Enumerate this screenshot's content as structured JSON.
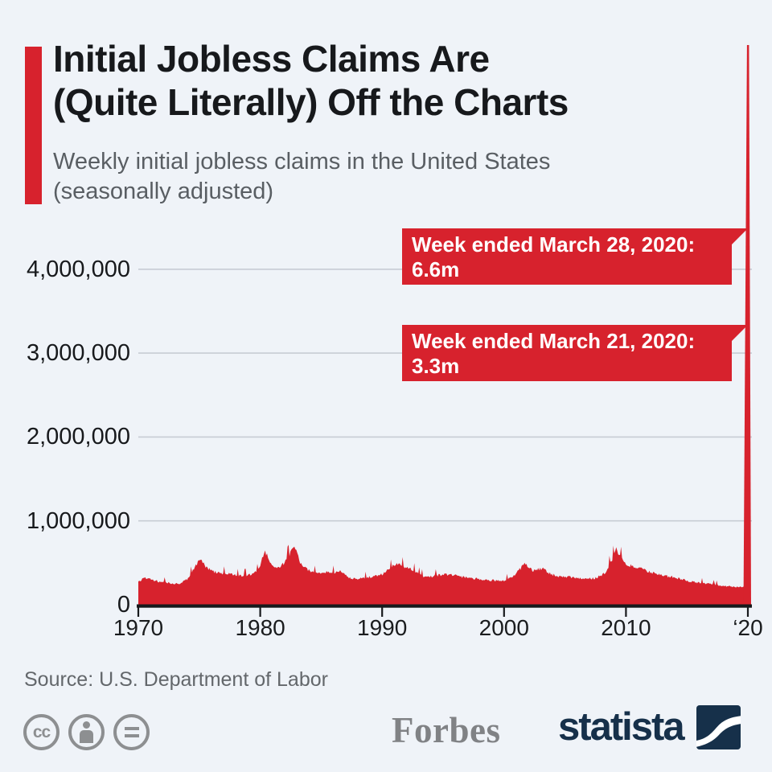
{
  "page": {
    "background_color": "#eff3f8",
    "accent_red": "#d7222d",
    "brand_navy": "#16304a"
  },
  "header": {
    "title_lines": [
      "Initial Jobless Claims Are",
      "(Quite Literally) Off the Charts"
    ],
    "subtitle_lines": [
      "Weekly initial jobless claims in the United States",
      "(seasonally adjusted)"
    ]
  },
  "chart_data": {
    "type": "area",
    "title": "Weekly initial jobless claims in the United States (seasonally adjusted)",
    "series_color": "#d7222d",
    "grid": "horizontal-only",
    "x_range": [
      1970,
      2020
    ],
    "ylim": [
      0,
      4350000
    ],
    "y_unit": "claims per week",
    "y_ticks": [
      {
        "label": "0",
        "millions": 0
      },
      {
        "label": "1,000,000",
        "millions": 1
      },
      {
        "label": "2,000,000",
        "millions": 2
      },
      {
        "label": "3,000,000",
        "millions": 3
      },
      {
        "label": "4,000,000",
        "millions": 4
      }
    ],
    "x_ticks": [
      {
        "label": "1970",
        "year": 1970
      },
      {
        "label": "1980",
        "year": 1980
      },
      {
        "label": "1990",
        "year": 1990
      },
      {
        "label": "2000",
        "year": 2000
      },
      {
        "label": "2010",
        "year": 2010
      },
      {
        "label": "‘20",
        "year": 2020
      }
    ],
    "series": [
      {
        "name": "Initial jobless claims (thousands, approximate weekly values)",
        "points": [
          [
            1970,
            270
          ],
          [
            1970.5,
            330
          ],
          [
            1971,
            300
          ],
          [
            1971.8,
            272
          ],
          [
            1972.5,
            260
          ],
          [
            1973.3,
            245
          ],
          [
            1974,
            300
          ],
          [
            1974.8,
            480
          ],
          [
            1975.1,
            560
          ],
          [
            1975.6,
            440
          ],
          [
            1976.2,
            390
          ],
          [
            1977,
            375
          ],
          [
            1977.8,
            355
          ],
          [
            1978.5,
            342
          ],
          [
            1979.2,
            360
          ],
          [
            1979.8,
            400
          ],
          [
            1980.4,
            640
          ],
          [
            1980.9,
            470
          ],
          [
            1981.4,
            425
          ],
          [
            1981.9,
            490
          ],
          [
            1982.4,
            600
          ],
          [
            1982.8,
            690
          ],
          [
            1983.3,
            500
          ],
          [
            1983.9,
            420
          ],
          [
            1984.6,
            372
          ],
          [
            1985.3,
            392
          ],
          [
            1986,
            382
          ],
          [
            1986.6,
            398
          ],
          [
            1987.2,
            322
          ],
          [
            1988,
            302
          ],
          [
            1989,
            332
          ],
          [
            1990,
            362
          ],
          [
            1990.8,
            448
          ],
          [
            1991.2,
            498
          ],
          [
            1991.9,
            448
          ],
          [
            1992.5,
            418
          ],
          [
            1993.2,
            348
          ],
          [
            1994,
            332
          ],
          [
            1995,
            362
          ],
          [
            1996,
            350
          ],
          [
            1997,
            318
          ],
          [
            1998,
            305
          ],
          [
            1999,
            292
          ],
          [
            2000,
            283
          ],
          [
            2000.8,
            340
          ],
          [
            2001.7,
            490
          ],
          [
            2002.3,
            408
          ],
          [
            2003.2,
            428
          ],
          [
            2003.9,
            360
          ],
          [
            2004.6,
            338
          ],
          [
            2005.5,
            328
          ],
          [
            2006.5,
            305
          ],
          [
            2007.5,
            318
          ],
          [
            2008.3,
            380
          ],
          [
            2008.8,
            520
          ],
          [
            2009.2,
            655
          ],
          [
            2009.7,
            540
          ],
          [
            2010.2,
            468
          ],
          [
            2010.9,
            448
          ],
          [
            2011.6,
            408
          ],
          [
            2012.3,
            374
          ],
          [
            2013.1,
            344
          ],
          [
            2013.9,
            330
          ],
          [
            2014.6,
            302
          ],
          [
            2015.4,
            275
          ],
          [
            2016.2,
            260
          ],
          [
            2017.2,
            240
          ],
          [
            2018.2,
            221
          ],
          [
            2019.3,
            214
          ],
          [
            2019.95,
            210
          ]
        ]
      }
    ],
    "offchart_spike": {
      "note": "2020 spike drawn past the top of the plot",
      "points_thousands": [
        [
          2020.05,
          3300
        ],
        [
          2020.1,
          6600
        ]
      ]
    },
    "annotations": [
      {
        "label": "Week ended March 28, 2020:",
        "value": "6.6m"
      },
      {
        "label": "Week ended March 21, 2020:",
        "value": "3.3m"
      }
    ]
  },
  "footer": {
    "source": "Source: U.S. Department of Labor",
    "license_icons": [
      "creative-commons",
      "attribution",
      "no-derivatives"
    ],
    "forbes_logo": "Forbes",
    "statista_logo": "statista"
  }
}
